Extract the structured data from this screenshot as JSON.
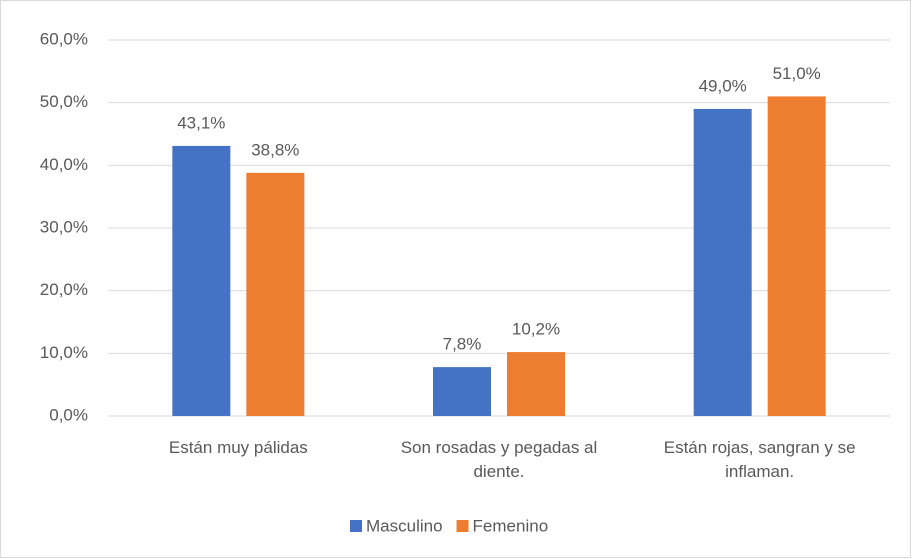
{
  "chart_data": {
    "type": "bar",
    "categories": [
      "Están muy pálidas",
      "Son rosadas y pegadas al diente.",
      "Están rojas, sangran y se inflaman."
    ],
    "series": [
      {
        "name": "Masculino",
        "color": "#4472c4",
        "values": [
          43.1,
          7.8,
          49.0
        ],
        "value_labels": [
          "43,1%",
          "7,8%",
          "49,0%"
        ]
      },
      {
        "name": "Femenino",
        "color": "#ed7d31",
        "values": [
          38.8,
          10.2,
          51.0
        ],
        "value_labels": [
          "38,8%",
          "10,2%",
          "51,0%"
        ]
      }
    ],
    "ylim": [
      0,
      60
    ],
    "yticks": [
      {
        "value": 0,
        "label": "0,0%"
      },
      {
        "value": 10,
        "label": "10,0%"
      },
      {
        "value": 20,
        "label": "20,0%"
      },
      {
        "value": 30,
        "label": "30,0%"
      },
      {
        "value": 40,
        "label": "40,0%"
      },
      {
        "value": 50,
        "label": "50,0%"
      },
      {
        "value": 60,
        "label": "60,0%"
      }
    ],
    "grid": true,
    "legend": "bottom"
  }
}
